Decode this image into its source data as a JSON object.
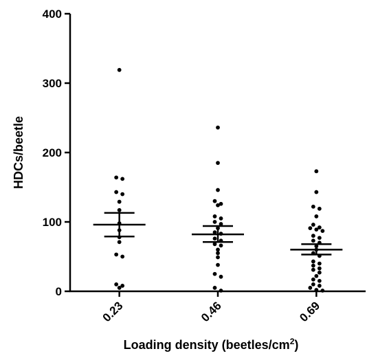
{
  "chart_data": {
    "type": "scatter",
    "xlabel": "Loading density (beetles/cm",
    "xlabel_sup": "2",
    "xlabel_end": ")",
    "ylabel": "HDCs/beetle",
    "ylim": [
      0,
      400
    ],
    "yticks": [
      "0",
      "100",
      "200",
      "300",
      "400"
    ],
    "categories": [
      "0.23",
      "0.46",
      "0.69"
    ],
    "groups": [
      {
        "category": "0.23",
        "mean": 96,
        "sem_low": 79,
        "sem_high": 113,
        "points": [
          319,
          164,
          162,
          143,
          140,
          129,
          117,
          98,
          88,
          78,
          71,
          53,
          50,
          10,
          8,
          5
        ]
      },
      {
        "category": "0.46",
        "mean": 82,
        "sem_low": 71,
        "sem_high": 94,
        "points": [
          236,
          185,
          146,
          130,
          126,
          124,
          108,
          105,
          100,
          97,
          91,
          85,
          83,
          76,
          73,
          68,
          66,
          60,
          55,
          49,
          38,
          25,
          21,
          5,
          1
        ]
      },
      {
        "category": "0.69",
        "mean": 60,
        "sem_low": 53,
        "sem_high": 68,
        "points": [
          173,
          143,
          122,
          119,
          108,
          96,
          92,
          91,
          89,
          87,
          80,
          77,
          73,
          70,
          65,
          60,
          55,
          51,
          43,
          40,
          37,
          33,
          31,
          27,
          22,
          17,
          15,
          10,
          8,
          5,
          2,
          1
        ]
      }
    ],
    "colors": {
      "points": "#000000",
      "axis": "#000000"
    }
  }
}
